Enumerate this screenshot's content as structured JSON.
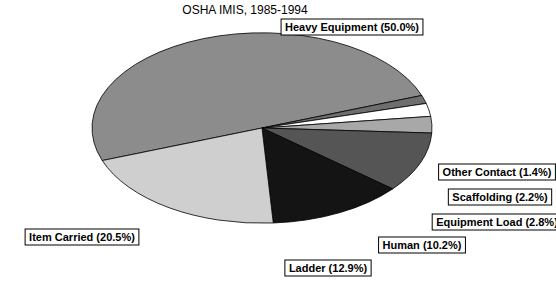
{
  "chart_data": {
    "type": "pie",
    "title": "OSHA IMIS, 1985-1994",
    "categories": [
      "Heavy Equipment (50.0%)",
      "Other Contact (1.4%)",
      "Scaffolding (2.2%)",
      "Equipment Load (2.8%)",
      "Human (10.2%)",
      "Ladder (12.9%)",
      "Item Carried (20.5%)"
    ],
    "values": [
      50.0,
      1.4,
      2.2,
      2.8,
      10.2,
      12.9,
      20.5
    ],
    "colors": [
      "#8c8c8c",
      "#6e6e6e",
      "#ffffff",
      "#a8a8a8",
      "#555555",
      "#141414",
      "#cfcfcf"
    ]
  }
}
